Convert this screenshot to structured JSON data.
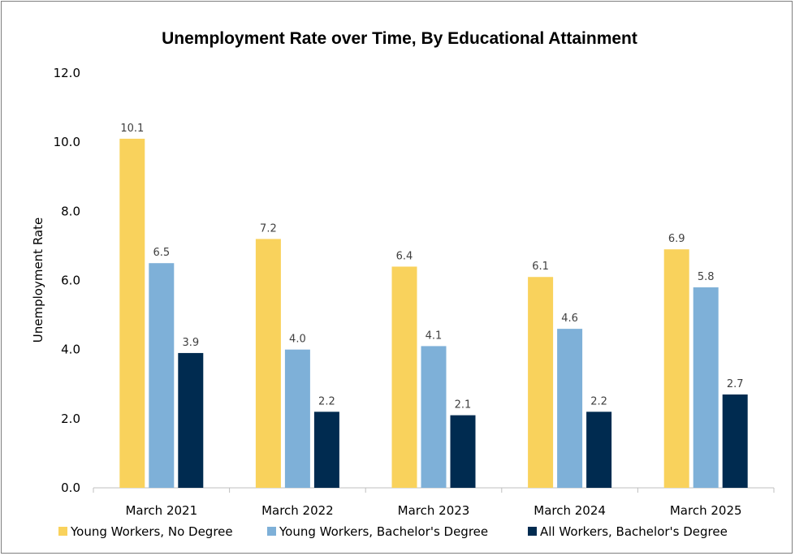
{
  "chart_data": {
    "type": "bar",
    "title": "Unemployment Rate over Time, By Educational Attainment",
    "ylabel": "Unemployment Rate",
    "xlabel": "",
    "ylim": [
      0,
      12
    ],
    "yticks": [
      "0.0",
      "2.0",
      "4.0",
      "6.0",
      "8.0",
      "10.0",
      "12.0"
    ],
    "grid": false,
    "legend_position": "bottom",
    "categories": [
      "March 2021",
      "March 2022",
      "March 2023",
      "March 2024",
      "March 2025"
    ],
    "series": [
      {
        "name": "Young Workers, No Degree",
        "color": "#f9d25c",
        "values": [
          10.1,
          7.2,
          6.4,
          6.1,
          6.9
        ],
        "labels": [
          "10.1",
          "7.2",
          "6.4",
          "6.1",
          "6.9"
        ]
      },
      {
        "name": "Young Workers, Bachelor's Degree",
        "color": "#7eb0d8",
        "values": [
          6.5,
          4.0,
          4.1,
          4.6,
          5.8
        ],
        "labels": [
          "6.5",
          "4.0",
          "4.1",
          "4.6",
          "5.8"
        ]
      },
      {
        "name": "All Workers, Bachelor's Degree",
        "color": "#002b50",
        "values": [
          3.9,
          2.2,
          2.1,
          2.2,
          2.7
        ],
        "labels": [
          "3.9",
          "2.2",
          "2.1",
          "2.2",
          "2.7"
        ]
      }
    ]
  }
}
